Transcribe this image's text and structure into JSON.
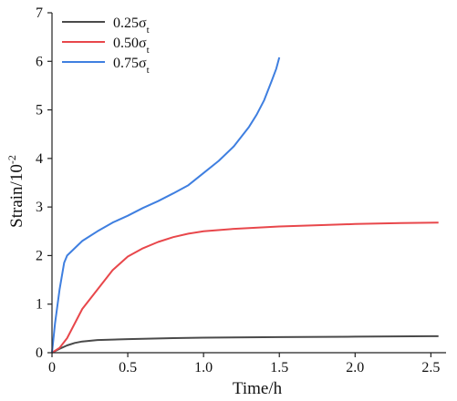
{
  "chart_data": {
    "type": "line",
    "xlabel": "Time/h",
    "ylabel": "Strain/10",
    "ylabel_exponent": "-2",
    "xlim": [
      0,
      2.6
    ],
    "ylim": [
      0,
      7
    ],
    "xticks": [
      0,
      0.5,
      1.0,
      1.5,
      2.0,
      2.5
    ],
    "xtick_labels": [
      "0",
      "0.5",
      "1.0",
      "1.5",
      "2.0",
      "2.5"
    ],
    "yticks": [
      0,
      1,
      2,
      3,
      4,
      5,
      6,
      7
    ],
    "ytick_labels": [
      "0",
      "1",
      "2",
      "3",
      "4",
      "5",
      "6",
      "7"
    ],
    "grid": false,
    "legend_position": "top-left",
    "series": [
      {
        "name": "0.25σ",
        "name_sub": "t",
        "color": "#4a4a4a",
        "x": [
          0,
          0.05,
          0.1,
          0.15,
          0.2,
          0.3,
          0.5,
          0.8,
          1.0,
          1.5,
          2.0,
          2.5,
          2.55
        ],
        "y": [
          0,
          0.08,
          0.15,
          0.2,
          0.23,
          0.26,
          0.28,
          0.3,
          0.31,
          0.32,
          0.33,
          0.34,
          0.34
        ]
      },
      {
        "name": "0.50σ",
        "name_sub": "t",
        "color": "#e8474b",
        "x": [
          0,
          0.05,
          0.1,
          0.15,
          0.2,
          0.3,
          0.4,
          0.5,
          0.6,
          0.7,
          0.8,
          0.9,
          1.0,
          1.2,
          1.5,
          1.8,
          2.0,
          2.3,
          2.55
        ],
        "y": [
          0,
          0.1,
          0.3,
          0.6,
          0.9,
          1.3,
          1.7,
          1.98,
          2.15,
          2.28,
          2.38,
          2.45,
          2.5,
          2.55,
          2.6,
          2.63,
          2.65,
          2.67,
          2.68
        ]
      },
      {
        "name": "0.75σ",
        "name_sub": "t",
        "color": "#3f7fe0",
        "x": [
          0,
          0.02,
          0.05,
          0.08,
          0.1,
          0.15,
          0.2,
          0.3,
          0.4,
          0.5,
          0.6,
          0.7,
          0.8,
          0.9,
          1.0,
          1.1,
          1.2,
          1.3,
          1.35,
          1.4,
          1.45,
          1.48,
          1.5
        ],
        "y": [
          0,
          0.6,
          1.3,
          1.85,
          2.0,
          2.15,
          2.3,
          2.5,
          2.68,
          2.82,
          2.98,
          3.12,
          3.28,
          3.45,
          3.7,
          3.95,
          4.25,
          4.65,
          4.9,
          5.2,
          5.6,
          5.85,
          6.08
        ]
      }
    ]
  }
}
